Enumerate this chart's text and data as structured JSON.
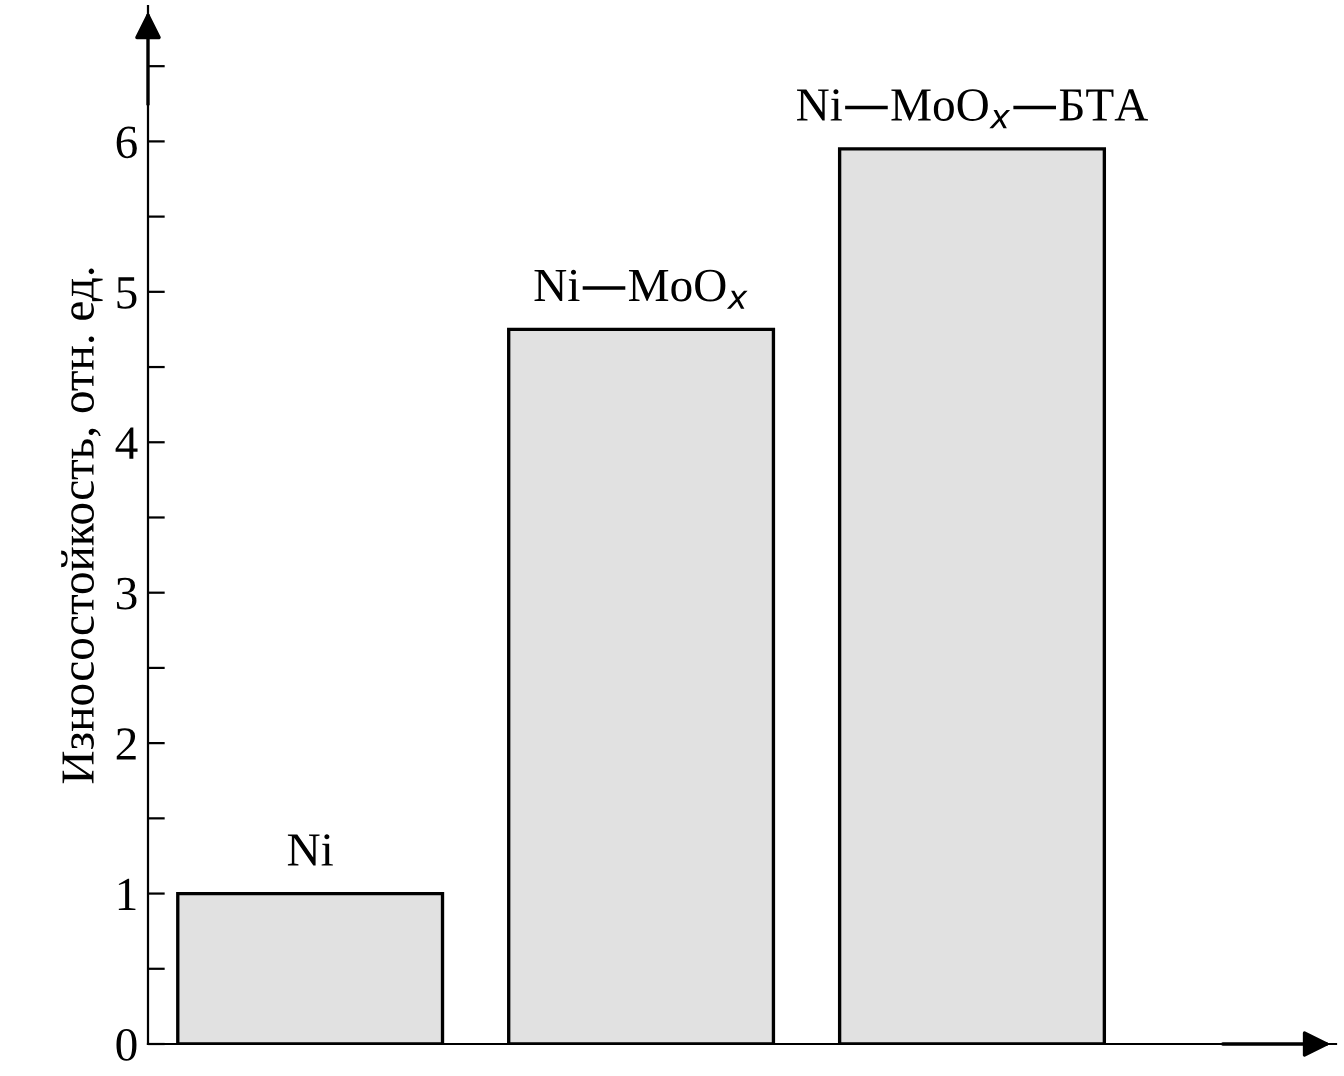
{
  "chart_data": {
    "type": "bar",
    "ylabel": "Износостойкость, отн. ед.",
    "categories": [
      "Ni",
      "Ni—MoO$_{x}$",
      "Ni—MoO$_{x}$—БТА"
    ],
    "values": [
      1.0,
      4.75,
      5.95
    ],
    "color": "#e1e1e1",
    "ylim": [
      0,
      6.9
    ],
    "yticks": [
      0,
      {
        "value": 0.5,
        "label": null
      },
      1,
      {
        "value": 1.5,
        "label": null
      },
      2,
      {
        "value": 2.5,
        "label": null
      },
      3,
      {
        "value": 3.5,
        "label": null
      },
      4,
      {
        "value": 4.5,
        "label": null
      },
      5,
      {
        "value": 5.5,
        "label": null
      },
      6,
      {
        "value": 6.5,
        "label": null
      }
    ],
    "tick_labels": "y",
    "grid": false,
    "legend": false
  }
}
